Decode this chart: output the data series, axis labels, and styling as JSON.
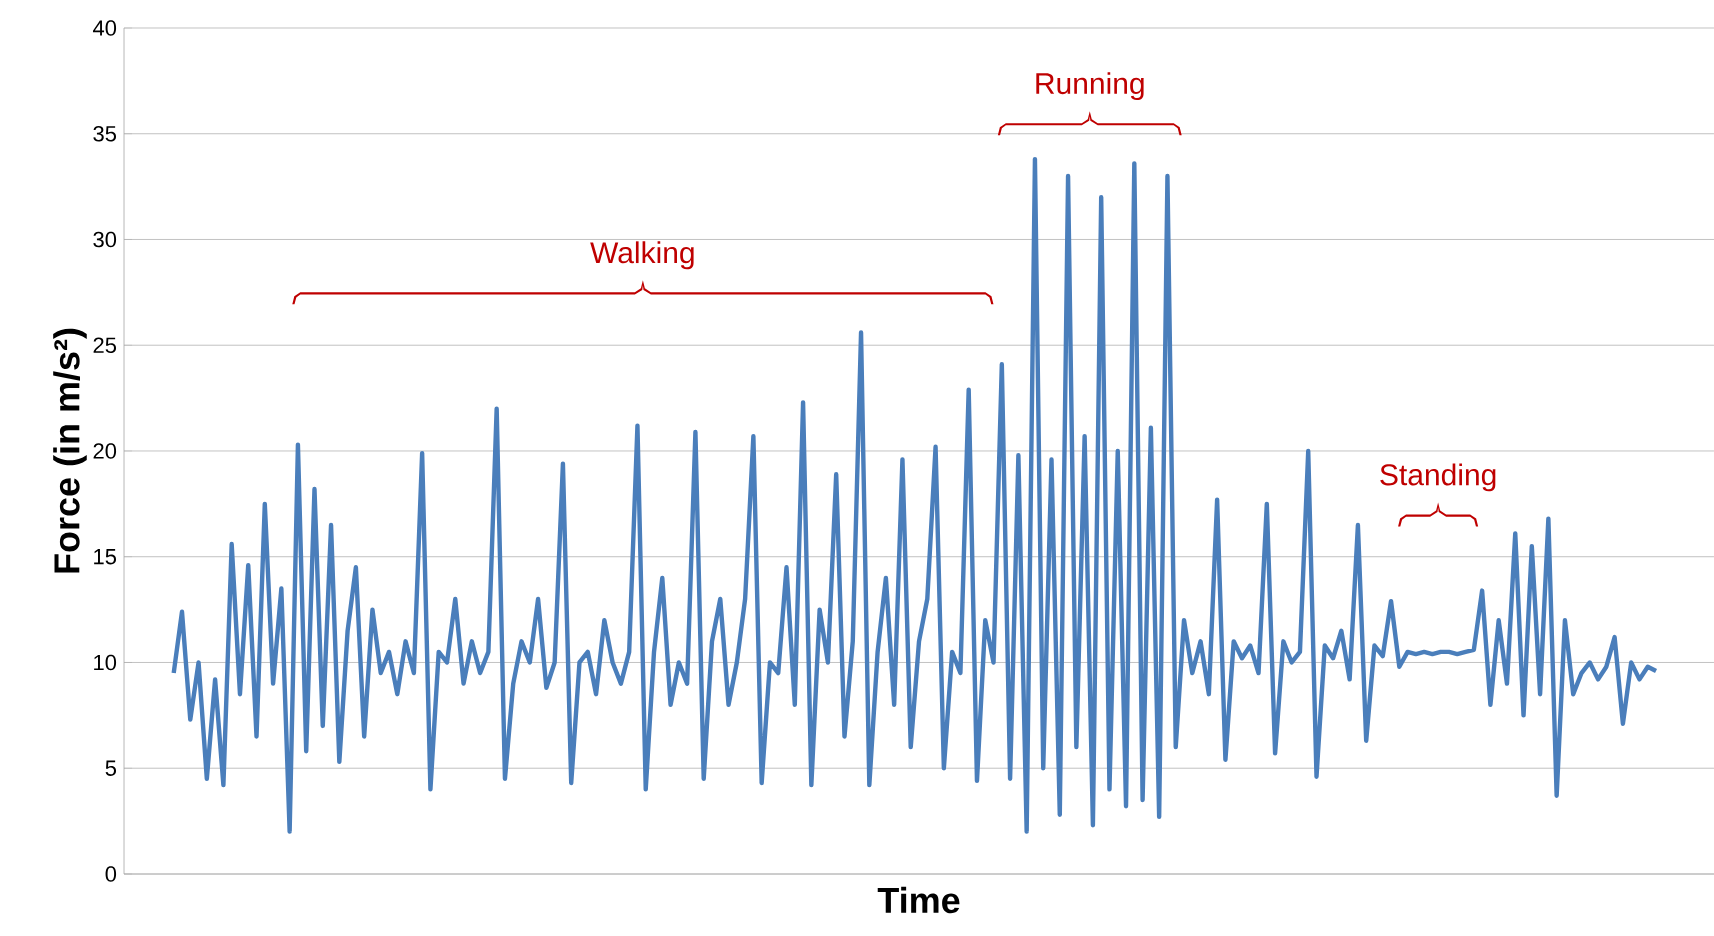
{
  "chart_data": {
    "type": "line",
    "xlabel": "Time",
    "ylabel": "Force (in m/s²)",
    "color": "#4a7ebb",
    "ylim": [
      0,
      40
    ],
    "yticks": [
      0,
      5,
      10,
      15,
      20,
      25,
      30,
      35,
      40
    ],
    "grid": "y",
    "annotations": [
      "Walking",
      "Running",
      "Standing"
    ],
    "values": [
      9.5,
      12.4,
      7.3,
      10,
      4.5,
      9.2,
      4.2,
      15.6,
      8.5,
      14.6,
      6.5,
      17.5,
      9,
      13.5,
      2.0,
      20.3,
      5.8,
      18.2,
      7.0,
      16.5,
      5.3,
      11.5,
      14.5,
      6.5,
      12.5,
      9.5,
      10.5,
      8.5,
      11,
      9.5,
      19.9,
      4.0,
      10.5,
      10,
      13,
      9,
      11,
      9.5,
      10.5,
      22,
      4.5,
      9,
      11,
      10,
      13,
      8.8,
      10,
      19.4,
      4.3,
      10,
      10.5,
      8.5,
      12,
      10,
      9,
      10.5,
      21.2,
      4.0,
      10.5,
      14,
      8,
      10,
      9,
      20.9,
      4.5,
      11,
      13,
      8,
      10,
      13,
      20.7,
      4.3,
      10,
      9.5,
      14.5,
      8,
      22.3,
      4.2,
      12.5,
      10,
      18.9,
      6.5,
      11,
      25.6,
      4.2,
      10.5,
      14,
      8,
      19.6,
      6,
      11,
      13,
      20.2,
      5,
      10.5,
      9.5,
      22.9,
      4.4,
      12,
      10,
      24.1,
      4.5,
      19.8,
      2.0,
      33.8,
      5,
      19.6,
      2.8,
      33.0,
      6,
      20.7,
      2.3,
      32.0,
      4,
      20,
      3.2,
      33.6,
      3.5,
      21.1,
      2.7,
      33.0,
      6,
      12,
      9.5,
      11,
      8.5,
      17.7,
      5.4,
      11,
      10.2,
      10.8,
      9.5,
      17.5,
      5.7,
      11,
      10,
      10.5,
      20,
      4.6,
      10.8,
      10.2,
      11.5,
      9.2,
      16.5,
      6.3,
      10.8,
      10.3,
      12.9,
      9.8,
      10.5,
      10.4,
      10.5,
      10.4,
      10.5,
      10.5,
      10.4,
      10.5,
      10.6,
      13.4,
      8,
      12,
      9,
      16.1,
      7.5,
      15.5,
      8.5,
      16.8,
      3.7,
      12,
      8.5,
      9.5,
      10,
      9.2,
      9.8,
      11.2,
      7.1,
      10,
      9.2,
      9.8,
      9.6
    ],
    "categories": [
      null,
      null,
      null,
      null,
      null,
      null,
      null,
      null,
      null,
      null,
      null,
      null,
      null,
      null,
      null,
      null,
      null,
      null,
      null,
      null,
      null,
      null,
      null,
      null,
      null,
      null,
      null,
      null,
      null,
      null,
      null,
      null,
      null,
      null,
      null,
      null,
      null,
      null,
      null,
      null,
      null,
      null,
      null,
      null,
      null,
      null,
      null,
      null,
      null,
      null,
      null,
      null,
      null,
      null,
      null,
      null,
      null,
      null,
      null,
      null,
      null,
      null,
      null,
      null,
      null,
      null,
      null,
      null,
      null,
      null,
      null,
      null,
      null,
      null,
      null,
      null,
      null,
      null,
      null,
      null,
      null,
      null,
      null,
      null,
      null,
      null,
      null,
      null,
      null,
      null,
      null,
      null,
      null,
      null,
      null,
      null,
      null,
      null,
      null,
      null,
      null,
      null,
      null,
      null,
      null,
      null,
      null,
      null,
      null,
      null,
      null,
      null,
      null,
      null,
      null,
      null,
      null,
      null,
      null,
      null,
      null,
      null,
      null,
      null,
      null,
      null,
      null,
      null,
      null,
      null,
      null,
      null,
      null,
      null,
      null,
      null,
      null,
      null,
      null,
      null,
      null,
      null,
      null,
      null,
      null,
      null,
      null,
      null,
      null,
      null,
      null,
      null,
      null,
      null,
      null,
      null,
      null,
      null,
      null,
      null,
      null,
      null,
      null,
      null,
      null,
      null,
      null,
      null,
      null,
      null,
      null,
      null,
      null,
      null,
      null,
      null,
      null,
      null,
      null,
      null
    ]
  }
}
